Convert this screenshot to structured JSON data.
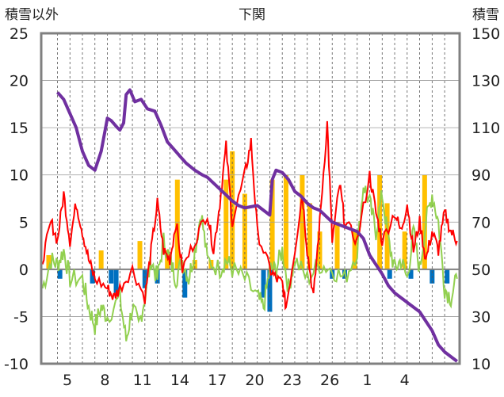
{
  "chart_data": {
    "type": "bar+line",
    "title": "下関",
    "left_axis_label": "積雪以外",
    "right_axis_label": "積雪",
    "ylim_left": [
      -10,
      25
    ],
    "ylim_right": [
      10,
      150
    ],
    "y_ticks_left": [
      "25",
      "20",
      "15",
      "10",
      "5",
      "0",
      "-5",
      "-10"
    ],
    "y_ticks_right": [
      "150",
      "130",
      "110",
      "90",
      "70",
      "50",
      "30",
      "10"
    ],
    "x_ticks": [
      "5",
      "8",
      "11",
      "14",
      "17",
      "20",
      "23",
      "26",
      "1",
      "4"
    ],
    "x_range_days": [
      0,
      30
    ],
    "grid": true,
    "series": [
      {
        "axis": "right",
        "color": "#7030a0",
        "points": [
          [
            0,
            125
          ],
          [
            0.5,
            122
          ],
          [
            1,
            116
          ],
          [
            1.5,
            110
          ],
          [
            2,
            100
          ],
          [
            2.5,
            94
          ],
          [
            3,
            92
          ],
          [
            3.5,
            100
          ],
          [
            4,
            114
          ],
          [
            4.3,
            113
          ],
          [
            4.8,
            110
          ],
          [
            5,
            109
          ],
          [
            5.3,
            112
          ],
          [
            5.5,
            124
          ],
          [
            5.8,
            126
          ],
          [
            6.2,
            121
          ],
          [
            6.7,
            122
          ],
          [
            7.2,
            118
          ],
          [
            7.8,
            117
          ],
          [
            8.3,
            111
          ],
          [
            8.8,
            104
          ],
          [
            9.3,
            101
          ],
          [
            9.8,
            98
          ],
          [
            10.3,
            95
          ],
          [
            11,
            92
          ],
          [
            11.6,
            90
          ],
          [
            12,
            89
          ],
          [
            13,
            84
          ],
          [
            14,
            79
          ],
          [
            14.5,
            77
          ],
          [
            15,
            76
          ],
          [
            16,
            77
          ],
          [
            17,
            73
          ],
          [
            17.2,
            88
          ],
          [
            17.5,
            92
          ],
          [
            18,
            91
          ],
          [
            18.5,
            88
          ],
          [
            19,
            83
          ],
          [
            19.5,
            81
          ],
          [
            20,
            78
          ],
          [
            20.5,
            76
          ],
          [
            21,
            75
          ],
          [
            22,
            70
          ],
          [
            23,
            68
          ],
          [
            24,
            66
          ],
          [
            24.5,
            63
          ],
          [
            25,
            56
          ],
          [
            26,
            48
          ],
          [
            26.5,
            43
          ],
          [
            27,
            40
          ],
          [
            27.5,
            38
          ],
          [
            28,
            36
          ],
          [
            29,
            32
          ],
          [
            29.5,
            28
          ],
          [
            30,
            24
          ],
          [
            30.5,
            18
          ],
          [
            31,
            15
          ],
          [
            31.5,
            13
          ],
          [
            32,
            11
          ]
        ]
      }
    ],
    "line_series": [
      {
        "axis": "left",
        "color": "#ff0000",
        "description": "red line"
      },
      {
        "axis": "left",
        "color": "#92d050",
        "description": "green line"
      }
    ],
    "bar_series": [
      {
        "axis": "left",
        "color": "#ffc000",
        "description": "positive bars"
      },
      {
        "axis": "left",
        "color": "#0070c0",
        "description": "negative bars"
      }
    ]
  }
}
